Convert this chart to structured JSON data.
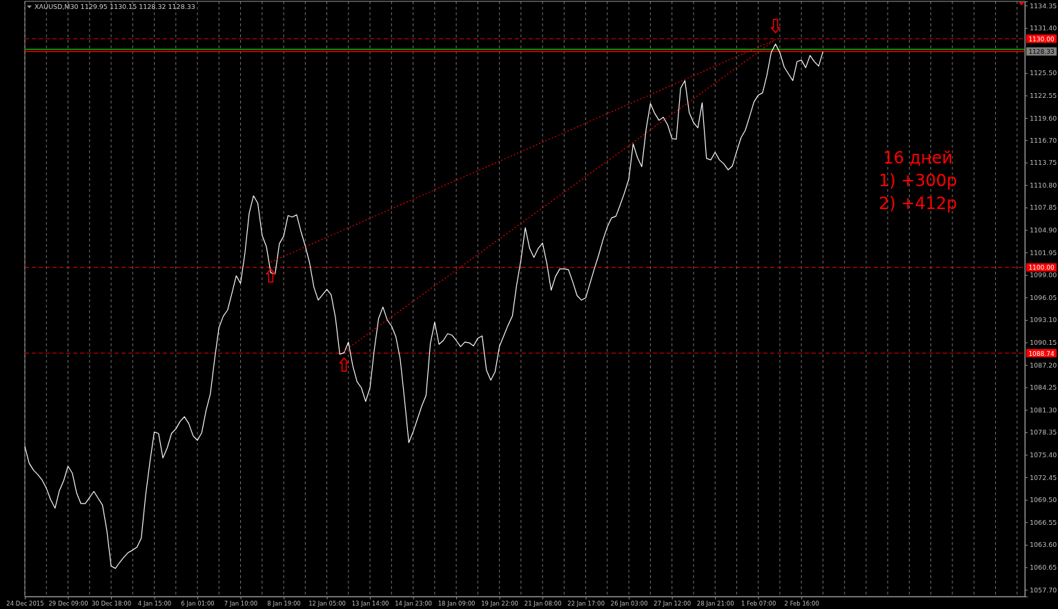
{
  "chart_data": {
    "type": "line",
    "title": "XAUUSD,M30  1129.95 1130.15 1128.32 1128.33",
    "annotations": [
      "16 дней",
      "1) +300p",
      "2) +412p"
    ],
    "categories": [
      "24 Dec 2015",
      null,
      null,
      null,
      null,
      null,
      null,
      null,
      null,
      null,
      "29 Dec 09:00",
      null,
      null,
      null,
      null,
      null,
      null,
      null,
      null,
      null,
      "30 Dec 18:00",
      null,
      null,
      null,
      null,
      null,
      null,
      null,
      null,
      null,
      "4 Jan 15:00",
      null,
      null,
      null,
      null,
      null,
      null,
      null,
      null,
      null,
      "6 Jan 01:00",
      null,
      null,
      null,
      null,
      null,
      null,
      null,
      null,
      null,
      "7 Jan 10:00",
      null,
      null,
      null,
      null,
      null,
      null,
      null,
      null,
      null,
      "8 Jan 19:00",
      null,
      null,
      null,
      null,
      null,
      null,
      null,
      null,
      null,
      "12 Jan 05:00",
      null,
      null,
      null,
      null,
      null,
      null,
      null,
      null,
      null,
      "13 Jan 14:00",
      null,
      null,
      null,
      null,
      null,
      null,
      null,
      null,
      null,
      "14 Jan 23:00",
      null,
      null,
      null,
      null,
      null,
      null,
      null,
      null,
      null,
      "18 Jan 09:00",
      null,
      null,
      null,
      null,
      null,
      null,
      null,
      null,
      null,
      "19 Jan 22:00",
      null,
      null,
      null,
      null,
      null,
      null,
      null,
      null,
      null,
      "21 Jan 08:00",
      null,
      null,
      null,
      null,
      null,
      null,
      null,
      null,
      null,
      "22 Jan 17:00",
      null,
      null,
      null,
      null,
      null,
      null,
      null,
      null,
      null,
      "26 Jan 03:00",
      null,
      null,
      null,
      null,
      null,
      null,
      null,
      null,
      null,
      "27 Jan 12:00",
      null,
      null,
      null,
      null,
      null,
      null,
      null,
      null,
      null,
      "28 Jan 21:00",
      null,
      null,
      null,
      null,
      null,
      null,
      null,
      null,
      null,
      "1 Feb 07:00",
      null,
      null,
      null,
      null,
      null,
      null,
      null,
      null,
      null,
      "2 Feb 16:00",
      null,
      null,
      null,
      null,
      null,
      null,
      null,
      null,
      null,
      null,
      null,
      null,
      null,
      null,
      null,
      null,
      null,
      null,
      null,
      null,
      null,
      null,
      null,
      null,
      null,
      null,
      null,
      null,
      null,
      null,
      null,
      null,
      null,
      null,
      null,
      null,
      null,
      null,
      null,
      null,
      null,
      null,
      null,
      null,
      null,
      null,
      null,
      null,
      null,
      null,
      null
    ],
    "ylim": [
      1056.8,
      1134.9
    ],
    "yticks": [
      1134.35,
      {
        "value": 1131.4,
        "label": "1131.40"
      },
      {
        "value": 1125.5,
        "label": "1125.50"
      },
      1122.55,
      {
        "value": 1119.6,
        "label": "1119.60"
      },
      {
        "value": 1116.7,
        "label": "1116.70"
      },
      1113.75,
      {
        "value": 1110.8,
        "label": "1110.80"
      },
      1107.85,
      {
        "value": 1104.9,
        "label": "1104.90"
      },
      1101.95,
      {
        "value": 1099.0,
        "label": "1099.00"
      },
      1096.05,
      {
        "value": 1093.1,
        "label": "1093.10"
      },
      1090.15,
      {
        "value": 1087.2,
        "label": "1087.20"
      },
      1084.25,
      {
        "value": 1081.3,
        "label": "1081.30"
      },
      1078.35,
      {
        "value": 1075.4,
        "label": "1075.40"
      },
      1072.45,
      {
        "value": 1069.5,
        "label": "1069.50"
      },
      1066.55,
      {
        "value": 1063.6,
        "label": "1063.60"
      },
      1060.65,
      {
        "value": 1057.7,
        "label": "1057.70"
      }
    ],
    "grid": "x",
    "marker": "none",
    "ref_lines": [
      {
        "axis": "y",
        "value": 1130.0,
        "label": "1130.00",
        "color": "#ff0000",
        "line_style": "dashed"
      },
      {
        "axis": "y",
        "value": 1100.0,
        "label": "1100.00",
        "color": "#ff0000",
        "line_style": "dashed"
      },
      {
        "axis": "y",
        "value": 1088.74,
        "label": "1088.74",
        "color": "#ff0000",
        "line_style": "dashed"
      },
      {
        "axis": "y",
        "value": 1128.6,
        "label": null,
        "color": "#00c000",
        "line_style": "solid"
      },
      {
        "axis": "y",
        "value": 1128.33,
        "label": "1128.33",
        "color": "#ff0000",
        "line_style": "solid"
      }
    ],
    "series": [
      {
        "color": "#ffffff",
        "line_style": "solid",
        "values": [
          1076.5,
          1074.3,
          1073.4,
          1072.8,
          1072.1,
          1071.0,
          1069.5,
          1068.4,
          1070.7,
          1072.0,
          1073.9,
          1073.0,
          1070.4,
          1069.0,
          1069.0,
          1069.8,
          1070.6,
          1069.7,
          1068.8,
          1065.5,
          1060.8,
          1060.5,
          1061.3,
          1062.0,
          1062.6,
          1062.9,
          1063.3,
          1064.5,
          1070.1,
          1074.5,
          1078.4,
          1078.2,
          1075.0,
          1076.3,
          1078.2,
          1078.8,
          1079.8,
          1080.4,
          1079.5,
          1077.9,
          1077.3,
          1078.3,
          1081.2,
          1083.4,
          1088.0,
          1092.1,
          1093.6,
          1094.4,
          1096.6,
          1098.9,
          1097.9,
          1101.8,
          1107.1,
          1109.4,
          1108.4,
          1104.2,
          1102.7,
          1099.3,
          1099.1,
          1103.1,
          1104.1,
          1106.8,
          1106.6,
          1106.9,
          1104.7,
          1102.8,
          1100.6,
          1097.4,
          1095.7,
          1096.4,
          1097.1,
          1096.4,
          1093.4,
          1088.6,
          1088.8,
          1090.2,
          1087.1,
          1085.0,
          1084.2,
          1082.4,
          1084.2,
          1089.2,
          1093.3,
          1094.8,
          1093.1,
          1092.3,
          1090.9,
          1088.0,
          1082.7,
          1077.0,
          1078.4,
          1080.1,
          1081.8,
          1083.2,
          1090.0,
          1092.8,
          1089.9,
          1090.4,
          1091.3,
          1091.1,
          1090.4,
          1089.6,
          1090.2,
          1090.1,
          1089.7,
          1090.7,
          1091.0,
          1086.5,
          1085.2,
          1086.3,
          1089.6,
          1091.0,
          1092.4,
          1093.6,
          1097.7,
          1101.0,
          1105.2,
          1102.5,
          1101.3,
          1102.5,
          1103.2,
          1100.5,
          1097.0,
          1098.8,
          1099.8,
          1099.8,
          1099.7,
          1098.1,
          1096.3,
          1095.7,
          1096.0,
          1097.9,
          1099.8,
          1101.6,
          1103.6,
          1105.3,
          1106.5,
          1106.7,
          1108.2,
          1109.8,
          1111.6,
          1116.2,
          1114.4,
          1113.2,
          1118.1,
          1121.5,
          1120.2,
          1119.3,
          1119.7,
          1118.7,
          1116.9,
          1116.8,
          1123.5,
          1124.5,
          1120.3,
          1119.0,
          1118.3,
          1121.6,
          1114.3,
          1114.1,
          1115.1,
          1114.1,
          1113.6,
          1112.8,
          1113.3,
          1115.2,
          1117.0,
          1118.0,
          1119.8,
          1121.7,
          1122.6,
          1122.9,
          1125.2,
          1128.2,
          1129.3,
          1128.2,
          1126.3,
          1125.4,
          1124.5,
          1127.0,
          1127.2,
          1126.2,
          1127.8,
          1127.0,
          1126.4,
          1128.3,
          null,
          null,
          null,
          null,
          null,
          null,
          null,
          null,
          null,
          null,
          null,
          null,
          null,
          null,
          null,
          null,
          null,
          null,
          null,
          null,
          null,
          null,
          null,
          null,
          null,
          null,
          null,
          null,
          null,
          null,
          null,
          null,
          null,
          null,
          null,
          null,
          null,
          null,
          null,
          null,
          null,
          null,
          null,
          null,
          null,
          null
        ]
      },
      {
        "color": "#ff0000",
        "line_style": "dotted",
        "values": [
          null,
          null,
          null,
          null,
          null,
          null,
          null,
          null,
          null,
          null,
          null,
          null,
          null,
          null,
          null,
          null,
          null,
          null,
          null,
          null,
          null,
          null,
          null,
          null,
          null,
          null,
          null,
          null,
          null,
          null,
          null,
          null,
          null,
          null,
          null,
          null,
          null,
          null,
          null,
          null,
          null,
          null,
          null,
          null,
          null,
          null,
          null,
          null,
          null,
          null,
          null,
          null,
          null,
          null,
          null,
          null,
          null,
          1100.7,
          null,
          null,
          null,
          null,
          null,
          null,
          null,
          null,
          null,
          null,
          null,
          null,
          null,
          null,
          null,
          null,
          null,
          null,
          null,
          null,
          null,
          null,
          null,
          null,
          null,
          null,
          null,
          null,
          null,
          null,
          null,
          null,
          null,
          null,
          null,
          null,
          null,
          null,
          null,
          null,
          null,
          null,
          null,
          null,
          null,
          null,
          null,
          null,
          null,
          null,
          null,
          null,
          null,
          null,
          null,
          null,
          null,
          null,
          null,
          null,
          null,
          null,
          null,
          null,
          null,
          null,
          null,
          null,
          null,
          null,
          null,
          null,
          null,
          null,
          null,
          null,
          null,
          null,
          null,
          null,
          null,
          null,
          null,
          null,
          null,
          null,
          null,
          null,
          null,
          null,
          null,
          null,
          null,
          null,
          null,
          null,
          null,
          null,
          null,
          null,
          null,
          null,
          null,
          null,
          null,
          null,
          null,
          null,
          null,
          null,
          null,
          null,
          null,
          null,
          null,
          null,
          1129.9,
          null,
          null,
          null,
          null,
          null,
          null,
          null,
          null,
          null,
          null,
          null,
          null,
          null,
          null,
          null,
          null,
          null,
          null,
          null,
          null,
          null,
          null,
          null,
          null,
          null,
          null,
          null,
          null,
          null,
          null,
          null,
          null,
          null,
          null,
          null,
          null,
          null,
          null,
          null,
          null,
          null,
          null,
          null,
          null,
          null,
          null,
          null,
          null,
          null,
          null,
          null,
          null,
          null,
          null,
          null,
          null,
          null
        ]
      },
      {
        "color": "#ff0000",
        "line_style": "dotted",
        "values": [
          null,
          null,
          null,
          null,
          null,
          null,
          null,
          null,
          null,
          null,
          null,
          null,
          null,
          null,
          null,
          null,
          null,
          null,
          null,
          null,
          null,
          null,
          null,
          null,
          null,
          null,
          null,
          null,
          null,
          null,
          null,
          null,
          null,
          null,
          null,
          null,
          null,
          null,
          null,
          null,
          null,
          null,
          null,
          null,
          null,
          null,
          null,
          null,
          null,
          null,
          null,
          null,
          null,
          null,
          null,
          null,
          null,
          null,
          null,
          null,
          null,
          null,
          null,
          null,
          null,
          null,
          null,
          null,
          null,
          null,
          null,
          null,
          null,
          null,
          1089.0,
          null,
          null,
          null,
          null,
          null,
          null,
          null,
          null,
          null,
          null,
          null,
          null,
          null,
          null,
          null,
          null,
          null,
          null,
          null,
          null,
          null,
          null,
          null,
          null,
          null,
          null,
          null,
          null,
          null,
          null,
          null,
          null,
          null,
          null,
          null,
          null,
          null,
          null,
          null,
          null,
          null,
          null,
          null,
          null,
          null,
          null,
          null,
          null,
          null,
          null,
          null,
          null,
          null,
          null,
          null,
          null,
          null,
          null,
          null,
          null,
          null,
          null,
          null,
          null,
          null,
          null,
          null,
          null,
          null,
          null,
          null,
          null,
          null,
          null,
          null,
          null,
          null,
          null,
          null,
          null,
          null,
          null,
          null,
          null,
          null,
          null,
          null,
          null,
          null,
          null,
          null,
          null,
          null,
          null,
          null,
          null,
          null,
          null,
          null,
          1129.9,
          null,
          null,
          null,
          null,
          null,
          null,
          null,
          null,
          null,
          null,
          null,
          null,
          null,
          null,
          null,
          null,
          null,
          null,
          null,
          null,
          null,
          null,
          null,
          null,
          null,
          null,
          null,
          null,
          null,
          null,
          null,
          null,
          null,
          null,
          null,
          null,
          null,
          null,
          null,
          null,
          null,
          null,
          null,
          null,
          null,
          null,
          null,
          null,
          null,
          null,
          null,
          null,
          null,
          null,
          null,
          null,
          null
        ]
      }
    ]
  }
}
